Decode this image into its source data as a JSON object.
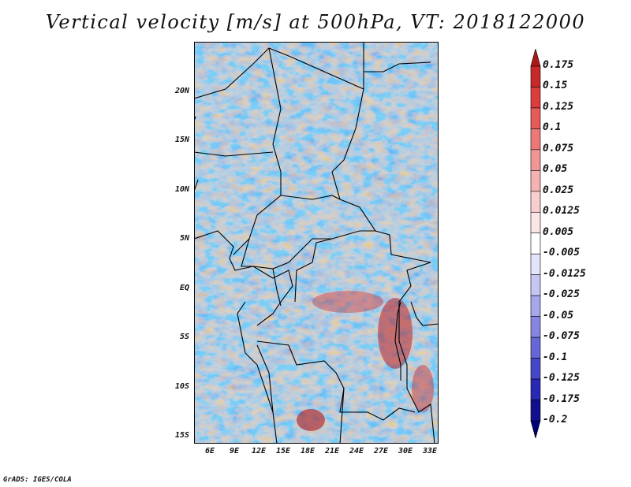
{
  "title": "Vertical velocity [m/s] at 500hPa, VT: 2018122000",
  "credit": "GrADS: IGES/COLA",
  "map": {
    "lat_labels": [
      "20N",
      "15N",
      "10N",
      "5N",
      "EQ",
      "5S",
      "10S",
      "15S"
    ],
    "lon_labels": [
      "6E",
      "9E",
      "12E",
      "15E",
      "18E",
      "21E",
      "24E",
      "27E",
      "30E",
      "33E"
    ]
  },
  "colorbar": {
    "labels": [
      "0.175",
      "0.15",
      "0.125",
      "0.1",
      "0.075",
      "0.05",
      "0.025",
      "0.0125",
      "0.005",
      "-0.005",
      "-0.0125",
      "-0.025",
      "-0.05",
      "-0.075",
      "-0.1",
      "-0.125",
      "-0.175",
      "-0.2"
    ],
    "colors": [
      "#b01818",
      "#c82828",
      "#dc3c3c",
      "#e65a5a",
      "#ec7878",
      "#f09696",
      "#f4b2b2",
      "#f8cece",
      "#fbe6e6",
      "#ffffff",
      "#e4e4fa",
      "#c6c6f2",
      "#a6a6ea",
      "#8686e0",
      "#6666d6",
      "#4646c8",
      "#2828b4",
      "#10108e",
      "#000078"
    ]
  }
}
